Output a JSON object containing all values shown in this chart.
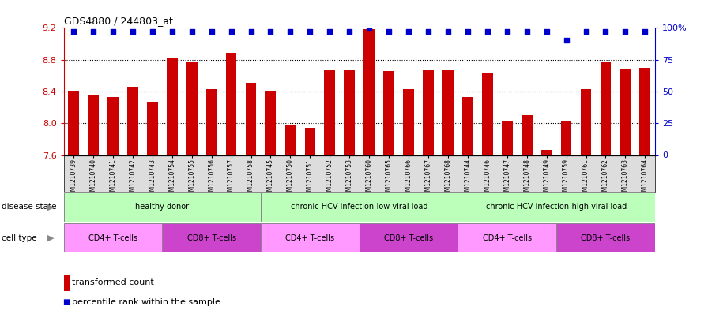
{
  "title": "GDS4880 / 244803_at",
  "samples": [
    "GSM1210739",
    "GSM1210740",
    "GSM1210741",
    "GSM1210742",
    "GSM1210743",
    "GSM1210754",
    "GSM1210755",
    "GSM1210756",
    "GSM1210757",
    "GSM1210758",
    "GSM1210745",
    "GSM1210750",
    "GSM1210751",
    "GSM1210752",
    "GSM1210753",
    "GSM1210760",
    "GSM1210765",
    "GSM1210766",
    "GSM1210767",
    "GSM1210768",
    "GSM1210744",
    "GSM1210746",
    "GSM1210747",
    "GSM1210748",
    "GSM1210749",
    "GSM1210759",
    "GSM1210761",
    "GSM1210762",
    "GSM1210763",
    "GSM1210764"
  ],
  "bar_values": [
    8.41,
    8.36,
    8.33,
    8.46,
    8.27,
    8.83,
    8.77,
    8.43,
    8.89,
    8.51,
    8.41,
    7.98,
    7.94,
    8.67,
    8.67,
    9.18,
    8.66,
    8.43,
    8.67,
    8.67,
    8.33,
    8.64,
    8.02,
    8.1,
    7.66,
    8.02,
    8.43,
    8.78,
    8.68,
    8.7
  ],
  "percentile_values": [
    97,
    97,
    97,
    97,
    97,
    97,
    97,
    97,
    97,
    97,
    97,
    97,
    97,
    97,
    97,
    100,
    97,
    97,
    97,
    97,
    97,
    97,
    97,
    97,
    97,
    90,
    97,
    97,
    97,
    97
  ],
  "bar_color": "#cc0000",
  "dot_color": "#0000cc",
  "ylim_left": [
    7.6,
    9.2
  ],
  "ylim_right": [
    0,
    100
  ],
  "yticks_left": [
    7.6,
    8.0,
    8.4,
    8.8,
    9.2
  ],
  "yticks_right": [
    0,
    25,
    50,
    75,
    100
  ],
  "ytick_labels_right": [
    "0",
    "25",
    "50",
    "75",
    "100%"
  ],
  "grid_values": [
    8.0,
    8.4,
    8.8
  ],
  "disease_state_groups": [
    {
      "label": "healthy donor",
      "start": 0,
      "end": 9,
      "color": "#bbffbb"
    },
    {
      "label": "chronic HCV infection-low viral load",
      "start": 10,
      "end": 19,
      "color": "#bbffbb"
    },
    {
      "label": "chronic HCV infection-high viral load",
      "start": 20,
      "end": 29,
      "color": "#bbffbb"
    }
  ],
  "cell_type_groups": [
    {
      "label": "CD4+ T-cells",
      "start": 0,
      "end": 4,
      "color": "#ff99ff"
    },
    {
      "label": "CD8+ T-cells",
      "start": 5,
      "end": 9,
      "color": "#cc44cc"
    },
    {
      "label": "CD4+ T-cells",
      "start": 10,
      "end": 14,
      "color": "#ff99ff"
    },
    {
      "label": "CD8+ T-cells",
      "start": 15,
      "end": 19,
      "color": "#cc44cc"
    },
    {
      "label": "CD4+ T-cells",
      "start": 20,
      "end": 24,
      "color": "#ff99ff"
    },
    {
      "label": "CD8+ T-cells",
      "start": 25,
      "end": 29,
      "color": "#cc44cc"
    }
  ],
  "disease_state_label": "disease state",
  "cell_type_label": "cell type",
  "legend_bar_label": "transformed count",
  "legend_dot_label": "percentile rank within the sample",
  "tick_color_left": "#cc0000",
  "tick_color_right": "#0000cc",
  "xtick_bg_color": "#dddddd"
}
